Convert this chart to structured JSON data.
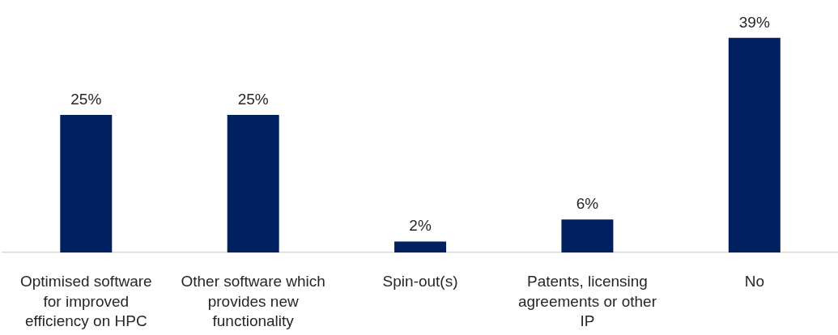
{
  "chart_data": {
    "type": "bar",
    "categories": [
      "Optimised software for improved efficiency on HPC",
      "Other software which provides new functionality",
      "Spin-out(s)",
      "Patents, licensing agreements or other IP",
      "No"
    ],
    "values": [
      25,
      25,
      2,
      6,
      39
    ],
    "value_labels": [
      "25%",
      "25%",
      "2%",
      "6%",
      "39%"
    ],
    "color": "#002060"
  }
}
